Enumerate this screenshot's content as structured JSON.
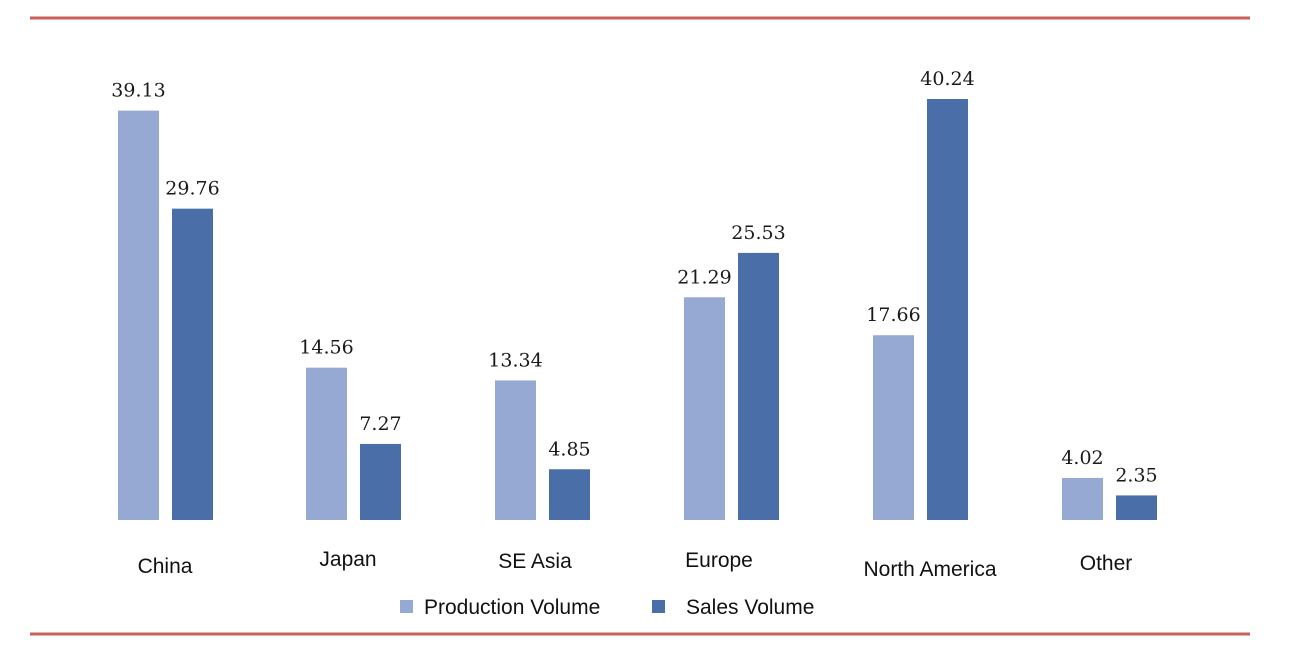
{
  "chart_data": {
    "type": "bar",
    "title": "",
    "xlabel": "",
    "ylabel": "",
    "ylim": [
      0,
      40.24
    ],
    "grid": false,
    "legend_position": "bottom-center",
    "categories": [
      "China",
      "Japan",
      "SE Asia",
      "Europe",
      "North America",
      "Other"
    ],
    "series": [
      {
        "name": "Production Volume",
        "color": "#96a9d3",
        "values": [
          39.13,
          14.56,
          13.34,
          21.29,
          17.66,
          4.02
        ],
        "labels": [
          "39.13",
          "14.56",
          "13.34",
          "21.29",
          "17.66",
          "4.02"
        ]
      },
      {
        "name": "Sales Volume",
        "color": "#4a6fa8",
        "values": [
          29.76,
          7.27,
          4.85,
          25.53,
          40.24,
          2.35
        ],
        "labels": [
          "29.76",
          "7.27",
          "4.85",
          "25.53",
          "40.24",
          "2.35"
        ]
      }
    ]
  },
  "colors": {
    "rule_line": "#c9605c",
    "background": "#ffffff"
  }
}
